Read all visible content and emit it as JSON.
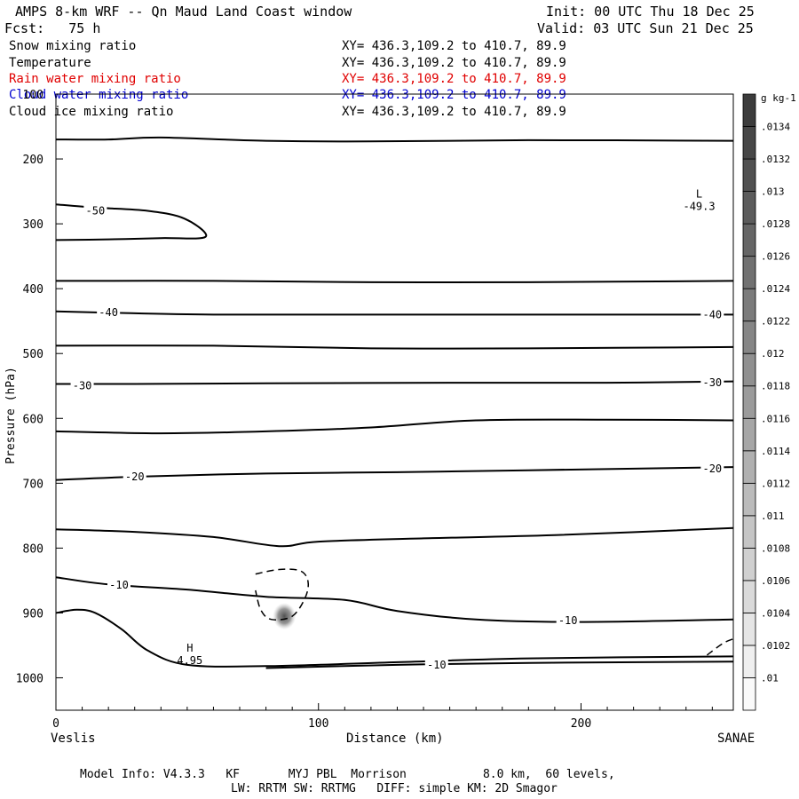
{
  "header": {
    "title": "AMPS 8-km WRF -- Qn Maud Land Coast window",
    "init": "Init: 00 UTC Thu 18 Dec 25",
    "fcst": "Fcst:   75 h",
    "valid": "Valid: 03 UTC Sun 21 Dec 25"
  },
  "fields": [
    {
      "name": "Snow mixing ratio",
      "xy": "XY= 436.3,109.2 to 410.7, 89.9",
      "color": "#000000"
    },
    {
      "name": "Temperature",
      "xy": "XY= 436.3,109.2 to 410.7, 89.9",
      "color": "#000000"
    },
    {
      "name": "Rain water mixing ratio",
      "xy": "XY= 436.3,109.2 to 410.7, 89.9",
      "color": "#e00000"
    },
    {
      "name": "Cloud water mixing ratio",
      "xy": "XY= 436.3,109.2 to 410.7, 89.9",
      "color": "#0000d0"
    },
    {
      "name": "Cloud ice mixing ratio",
      "xy": "XY= 436.3,109.2 to 410.7, 89.9",
      "color": "#000000"
    }
  ],
  "chart_data": {
    "type": "cross-section contour",
    "xlabel": "Distance (km)",
    "ylabel": "Pressure (hPa)",
    "xlim": [
      0,
      258
    ],
    "ylim": [
      1050,
      100
    ],
    "x_ticks": [
      0,
      100,
      200
    ],
    "y_ticks": [
      200,
      300,
      400,
      500,
      600,
      700,
      800,
      900,
      1000
    ],
    "y_tick_labels": [
      "200",
      "300",
      "400",
      "500",
      "600",
      "700",
      "800",
      "900",
      "1000"
    ],
    "x_endpoints": {
      "left": "Veslis",
      "right": "SANAE"
    },
    "contour_labels": [
      {
        "text": "-50",
        "x": 15,
        "p": 280
      },
      {
        "text": "-40",
        "x": 20,
        "p": 437
      },
      {
        "text": "-40",
        "x": 250,
        "p": 440
      },
      {
        "text": "-30",
        "x": 10,
        "p": 550
      },
      {
        "text": "-30",
        "x": 250,
        "p": 545
      },
      {
        "text": "-20",
        "x": 30,
        "p": 690
      },
      {
        "text": "-20",
        "x": 250,
        "p": 678
      },
      {
        "text": "-10",
        "x": 24,
        "p": 857
      },
      {
        "text": "-10",
        "x": 195,
        "p": 912
      },
      {
        "text": "-10",
        "x": 145,
        "p": 980
      }
    ],
    "extrema": [
      {
        "type": "L",
        "value": "-49.3",
        "x": 245,
        "p": 265
      },
      {
        "type": "H",
        "value": "4.95",
        "x": 51,
        "p": 965
      }
    ],
    "isotherms": [
      {
        "value": -55,
        "points": [
          [
            0,
            170
          ],
          [
            20,
            170
          ],
          [
            40,
            167
          ],
          [
            80,
            172
          ],
          [
            120,
            173
          ],
          [
            180,
            171
          ],
          [
            258,
            172
          ]
        ]
      },
      {
        "value": -50,
        "points": [
          [
            0,
            270
          ],
          [
            15,
            275
          ],
          [
            35,
            280
          ],
          [
            49,
            292
          ],
          [
            57,
            320
          ],
          [
            40,
            322
          ],
          [
            20,
            324
          ],
          [
            0,
            325
          ]
        ]
      },
      {
        "value": -45,
        "points": [
          [
            0,
            388
          ],
          [
            60,
            388
          ],
          [
            120,
            390
          ],
          [
            180,
            390
          ],
          [
            258,
            388
          ]
        ]
      },
      {
        "value": -40,
        "points": [
          [
            0,
            435
          ],
          [
            20,
            437
          ],
          [
            60,
            440
          ],
          [
            120,
            440
          ],
          [
            200,
            440
          ],
          [
            258,
            440
          ]
        ]
      },
      {
        "value": -35,
        "points": [
          [
            0,
            488
          ],
          [
            60,
            488
          ],
          [
            120,
            492
          ],
          [
            180,
            492
          ],
          [
            258,
            490
          ]
        ]
      },
      {
        "value": -30,
        "points": [
          [
            0,
            547
          ],
          [
            30,
            547
          ],
          [
            80,
            546
          ],
          [
            150,
            545
          ],
          [
            210,
            545
          ],
          [
            258,
            543
          ]
        ]
      },
      {
        "value": -25,
        "points": [
          [
            0,
            620
          ],
          [
            40,
            623
          ],
          [
            80,
            620
          ],
          [
            120,
            614
          ],
          [
            160,
            603
          ],
          [
            210,
            602
          ],
          [
            258,
            603
          ]
        ]
      },
      {
        "value": -20,
        "points": [
          [
            0,
            695
          ],
          [
            30,
            690
          ],
          [
            80,
            685
          ],
          [
            130,
            683
          ],
          [
            180,
            680
          ],
          [
            258,
            675
          ]
        ]
      },
      {
        "value": -15,
        "points": [
          [
            0,
            771
          ],
          [
            30,
            775
          ],
          [
            60,
            783
          ],
          [
            85,
            797
          ],
          [
            100,
            790
          ],
          [
            140,
            785
          ],
          [
            190,
            780
          ],
          [
            258,
            769
          ]
        ]
      },
      {
        "value": -10,
        "points": [
          [
            0,
            845
          ],
          [
            20,
            856
          ],
          [
            50,
            864
          ],
          [
            80,
            875
          ],
          [
            110,
            880
          ],
          [
            130,
            897
          ],
          [
            160,
            910
          ],
          [
            200,
            914
          ],
          [
            258,
            910
          ]
        ]
      },
      {
        "value": -5,
        "points": [
          [
            0,
            900
          ],
          [
            8,
            895
          ],
          [
            15,
            900
          ],
          [
            25,
            925
          ],
          [
            35,
            958
          ],
          [
            50,
            980
          ],
          [
            80,
            982
          ],
          [
            130,
            976
          ],
          [
            180,
            970
          ],
          [
            258,
            967
          ]
        ]
      },
      {
        "value": -10,
        "points": [
          [
            80,
            985
          ],
          [
            130,
            980
          ],
          [
            180,
            977
          ],
          [
            258,
            975
          ]
        ]
      }
    ],
    "dashed_contours": [
      {
        "points": [
          [
            76,
            840
          ],
          [
            85,
            833
          ],
          [
            93,
            835
          ],
          [
            96,
            851
          ],
          [
            95,
            876
          ],
          [
            90,
            905
          ],
          [
            82,
            910
          ],
          [
            78,
            895
          ],
          [
            76,
            865
          ]
        ]
      },
      {
        "points": [
          [
            248,
            965
          ],
          [
            254,
            947
          ],
          [
            258,
            940
          ]
        ]
      }
    ],
    "colorbar": {
      "unit": "g kg-1",
      "levels": [
        0.01,
        0.0102,
        0.0104,
        0.0106,
        0.0108,
        0.011,
        0.0112,
        0.0114,
        0.0116,
        0.0118,
        0.012,
        0.0122,
        0.0124,
        0.0126,
        0.0128,
        0.013,
        0.0132,
        0.0134
      ],
      "labels": [
        ".01",
        ".0102",
        ".0104",
        ".0106",
        ".0108",
        ".011",
        ".0112",
        ".0114",
        ".0116",
        ".0118",
        ".012",
        ".0122",
        ".0124",
        ".0126",
        ".0128",
        ".013",
        ".0132",
        ".0134"
      ]
    },
    "shaded_feature": {
      "x": 87,
      "p": 905,
      "value": 0.0122
    }
  },
  "footer": {
    "line1": "Model Info: V4.3.3   KF       MYJ PBL  Morrison           8.0 km,  60 levels,",
    "line2": "LW: RRTM SW: RRTMG   DIFF: simple KM: 2D Smagor"
  }
}
